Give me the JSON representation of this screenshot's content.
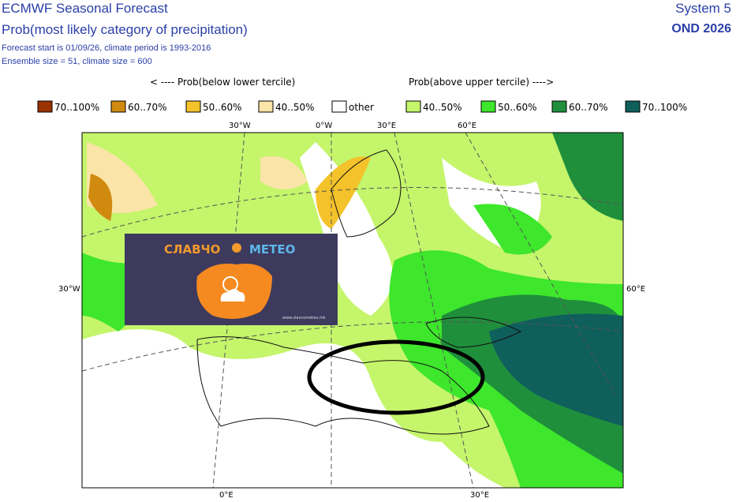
{
  "header": {
    "title": "ECMWF Seasonal Forecast",
    "subtitle": "Prob(most likely category of precipitation)",
    "forecast_start": "Forecast start is 01/09/26, climate period is 1993-2016",
    "ensemble": "Ensemble size = 51, climate size = 600",
    "system": "System 5",
    "period": "OND 2026"
  },
  "legend": {
    "below_heading": "< ---- Prob(below lower tercile)",
    "above_heading": "Prob(above upper tercile) ---->",
    "items": [
      {
        "label": "70..100%",
        "color": "#9a3300"
      },
      {
        "label": "60..70%",
        "color": "#d08a10"
      },
      {
        "label": "50..60%",
        "color": "#f4c22a"
      },
      {
        "label": "40..50%",
        "color": "#fbe4a8"
      },
      {
        "label": "other",
        "color": "#ffffff"
      },
      {
        "label": "40..50%",
        "color": "#c4f56a"
      },
      {
        "label": "50..60%",
        "color": "#3ee62c"
      },
      {
        "label": "60..70%",
        "color": "#1f8f3c"
      },
      {
        "label": "70..100%",
        "color": "#0f5f5c"
      }
    ]
  },
  "map": {
    "lon_labels_top": [
      "30°W",
      "0°W",
      "30°E",
      "60°E"
    ],
    "lat_label_left": "30°W",
    "lat_label_right": "60°E",
    "lon_labels_bottom": [
      "0°E",
      "30°E"
    ]
  },
  "logo": {
    "name_left": "СЛАВЧО",
    "name_right": "МЕТЕО",
    "url": "www.slavcometeo.mk"
  }
}
